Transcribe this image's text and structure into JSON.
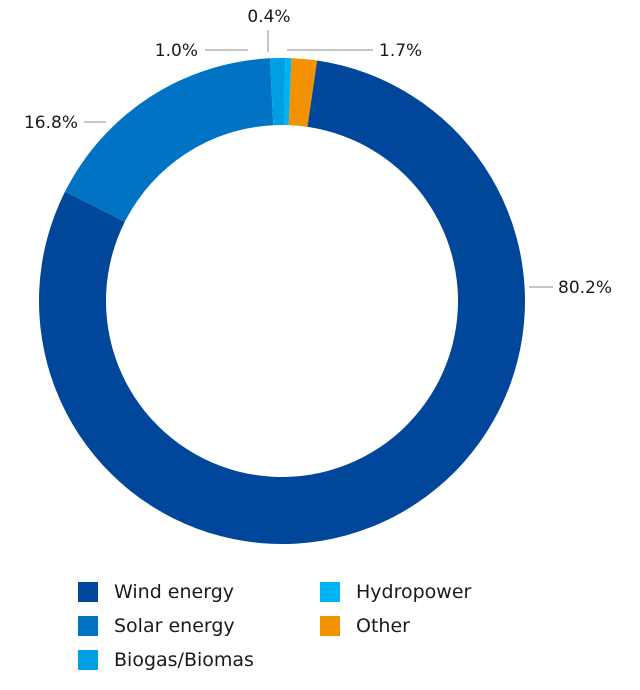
{
  "chart_data": {
    "type": "pie",
    "title": "",
    "donut": true,
    "series": [
      {
        "name": "Wind energy",
        "value": 80.2,
        "label": "80.2%",
        "color": "#00479b"
      },
      {
        "name": "Solar energy",
        "value": 16.8,
        "label": "16.8%",
        "color": "#0073c4"
      },
      {
        "name": "Biogas/Biomas",
        "value": 1.0,
        "label": "1.0%",
        "color": "#009fe3"
      },
      {
        "name": "Hydropower",
        "value": 0.4,
        "label": "0.4%",
        "color": "#00b5ef"
      },
      {
        "name": "Other",
        "value": 1.7,
        "label": "1.7%",
        "color": "#f39200"
      }
    ],
    "legend_placement": "bottom"
  }
}
